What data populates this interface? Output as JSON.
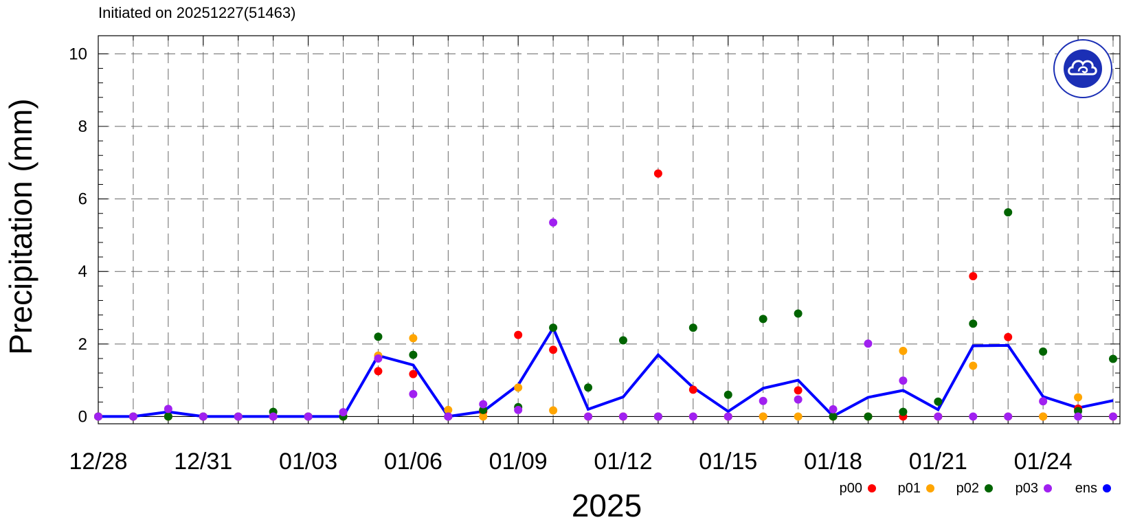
{
  "chart_data": {
    "type": "scatter",
    "title": "Initiated on 20251227(51463)",
    "xlabel": "2025",
    "ylabel": "Precipitation (mm)",
    "ylim": [
      -0.2,
      10.5
    ],
    "yticks": [
      "0",
      "2",
      "4",
      "6",
      "8",
      "10"
    ],
    "yticks_values": [
      0,
      2,
      4,
      6,
      8,
      10
    ],
    "dates": [
      "12/28",
      "12/29",
      "12/30",
      "12/31",
      "01/01",
      "01/02",
      "01/03",
      "01/04",
      "01/05",
      "01/06",
      "01/07",
      "01/08",
      "01/09",
      "01/10",
      "01/11",
      "01/12",
      "01/13",
      "01/14",
      "01/15",
      "01/16",
      "01/17",
      "01/18",
      "01/19",
      "01/20",
      "01/21",
      "01/22",
      "01/23",
      "01/24",
      "01/25",
      "01/26"
    ],
    "xtick_labels": [
      "12/28",
      "12/31",
      "01/03",
      "01/06",
      "01/09",
      "01/12",
      "01/15",
      "01/18",
      "01/21",
      "01/24"
    ],
    "xtick_indices": [
      0,
      3,
      6,
      9,
      12,
      15,
      18,
      21,
      24,
      27
    ],
    "grid": true,
    "legend_position": "bottom-right",
    "series": [
      {
        "name": "p00",
        "color": "#ff0000",
        "mode": "markers",
        "values": [
          0,
          0,
          0,
          0,
          0,
          0,
          0,
          0,
          1.25,
          1.17,
          0,
          0.14,
          2.25,
          1.84,
          0,
          0,
          6.7,
          0.74,
          0,
          0,
          0.72,
          0,
          0,
          0,
          0,
          3.87,
          2.19,
          0,
          0.22,
          0
        ]
      },
      {
        "name": "p01",
        "color": "#ffa500",
        "mode": "markers",
        "values": [
          0,
          0,
          0,
          0,
          0,
          0,
          0,
          0,
          1.68,
          2.16,
          0.18,
          0,
          0.8,
          0.17,
          0,
          0,
          0,
          0,
          0,
          0,
          0,
          0,
          0,
          1.81,
          0,
          1.4,
          0,
          0,
          0.53,
          0
        ]
      },
      {
        "name": "p02",
        "color": "#006400",
        "mode": "markers",
        "values": [
          0,
          0,
          0,
          0,
          0,
          0.13,
          0,
          0,
          2.2,
          1.7,
          0,
          0.18,
          0.26,
          2.45,
          0.8,
          2.1,
          0,
          2.45,
          0.6,
          2.69,
          2.84,
          0,
          0,
          0.13,
          0.41,
          2.56,
          5.63,
          1.79,
          0.15,
          1.59
        ]
      },
      {
        "name": "p03",
        "color": "#a020f0",
        "mode": "markers",
        "values": [
          0,
          0,
          0.21,
          0,
          0,
          0,
          0,
          0.12,
          1.6,
          0.62,
          0,
          0.34,
          0.18,
          5.35,
          0,
          0,
          0,
          0,
          0,
          0.43,
          0.47,
          0.2,
          2.01,
          0.99,
          0,
          0,
          0,
          0.42,
          0,
          0
        ]
      },
      {
        "name": "ens",
        "color": "#0000ff",
        "mode": "lines",
        "values": [
          0,
          0,
          0.13,
          0,
          0,
          0,
          0,
          0,
          1.68,
          1.42,
          0,
          0.14,
          0.87,
          2.44,
          0.2,
          0.54,
          1.7,
          0.8,
          0.14,
          0.78,
          1.0,
          0.01,
          0.53,
          0.72,
          0.19,
          1.95,
          1.96,
          0.55,
          0.24,
          0.44
        ]
      }
    ]
  },
  "logo": {
    "name": "cma-logo",
    "color": "#1b2fb5"
  }
}
